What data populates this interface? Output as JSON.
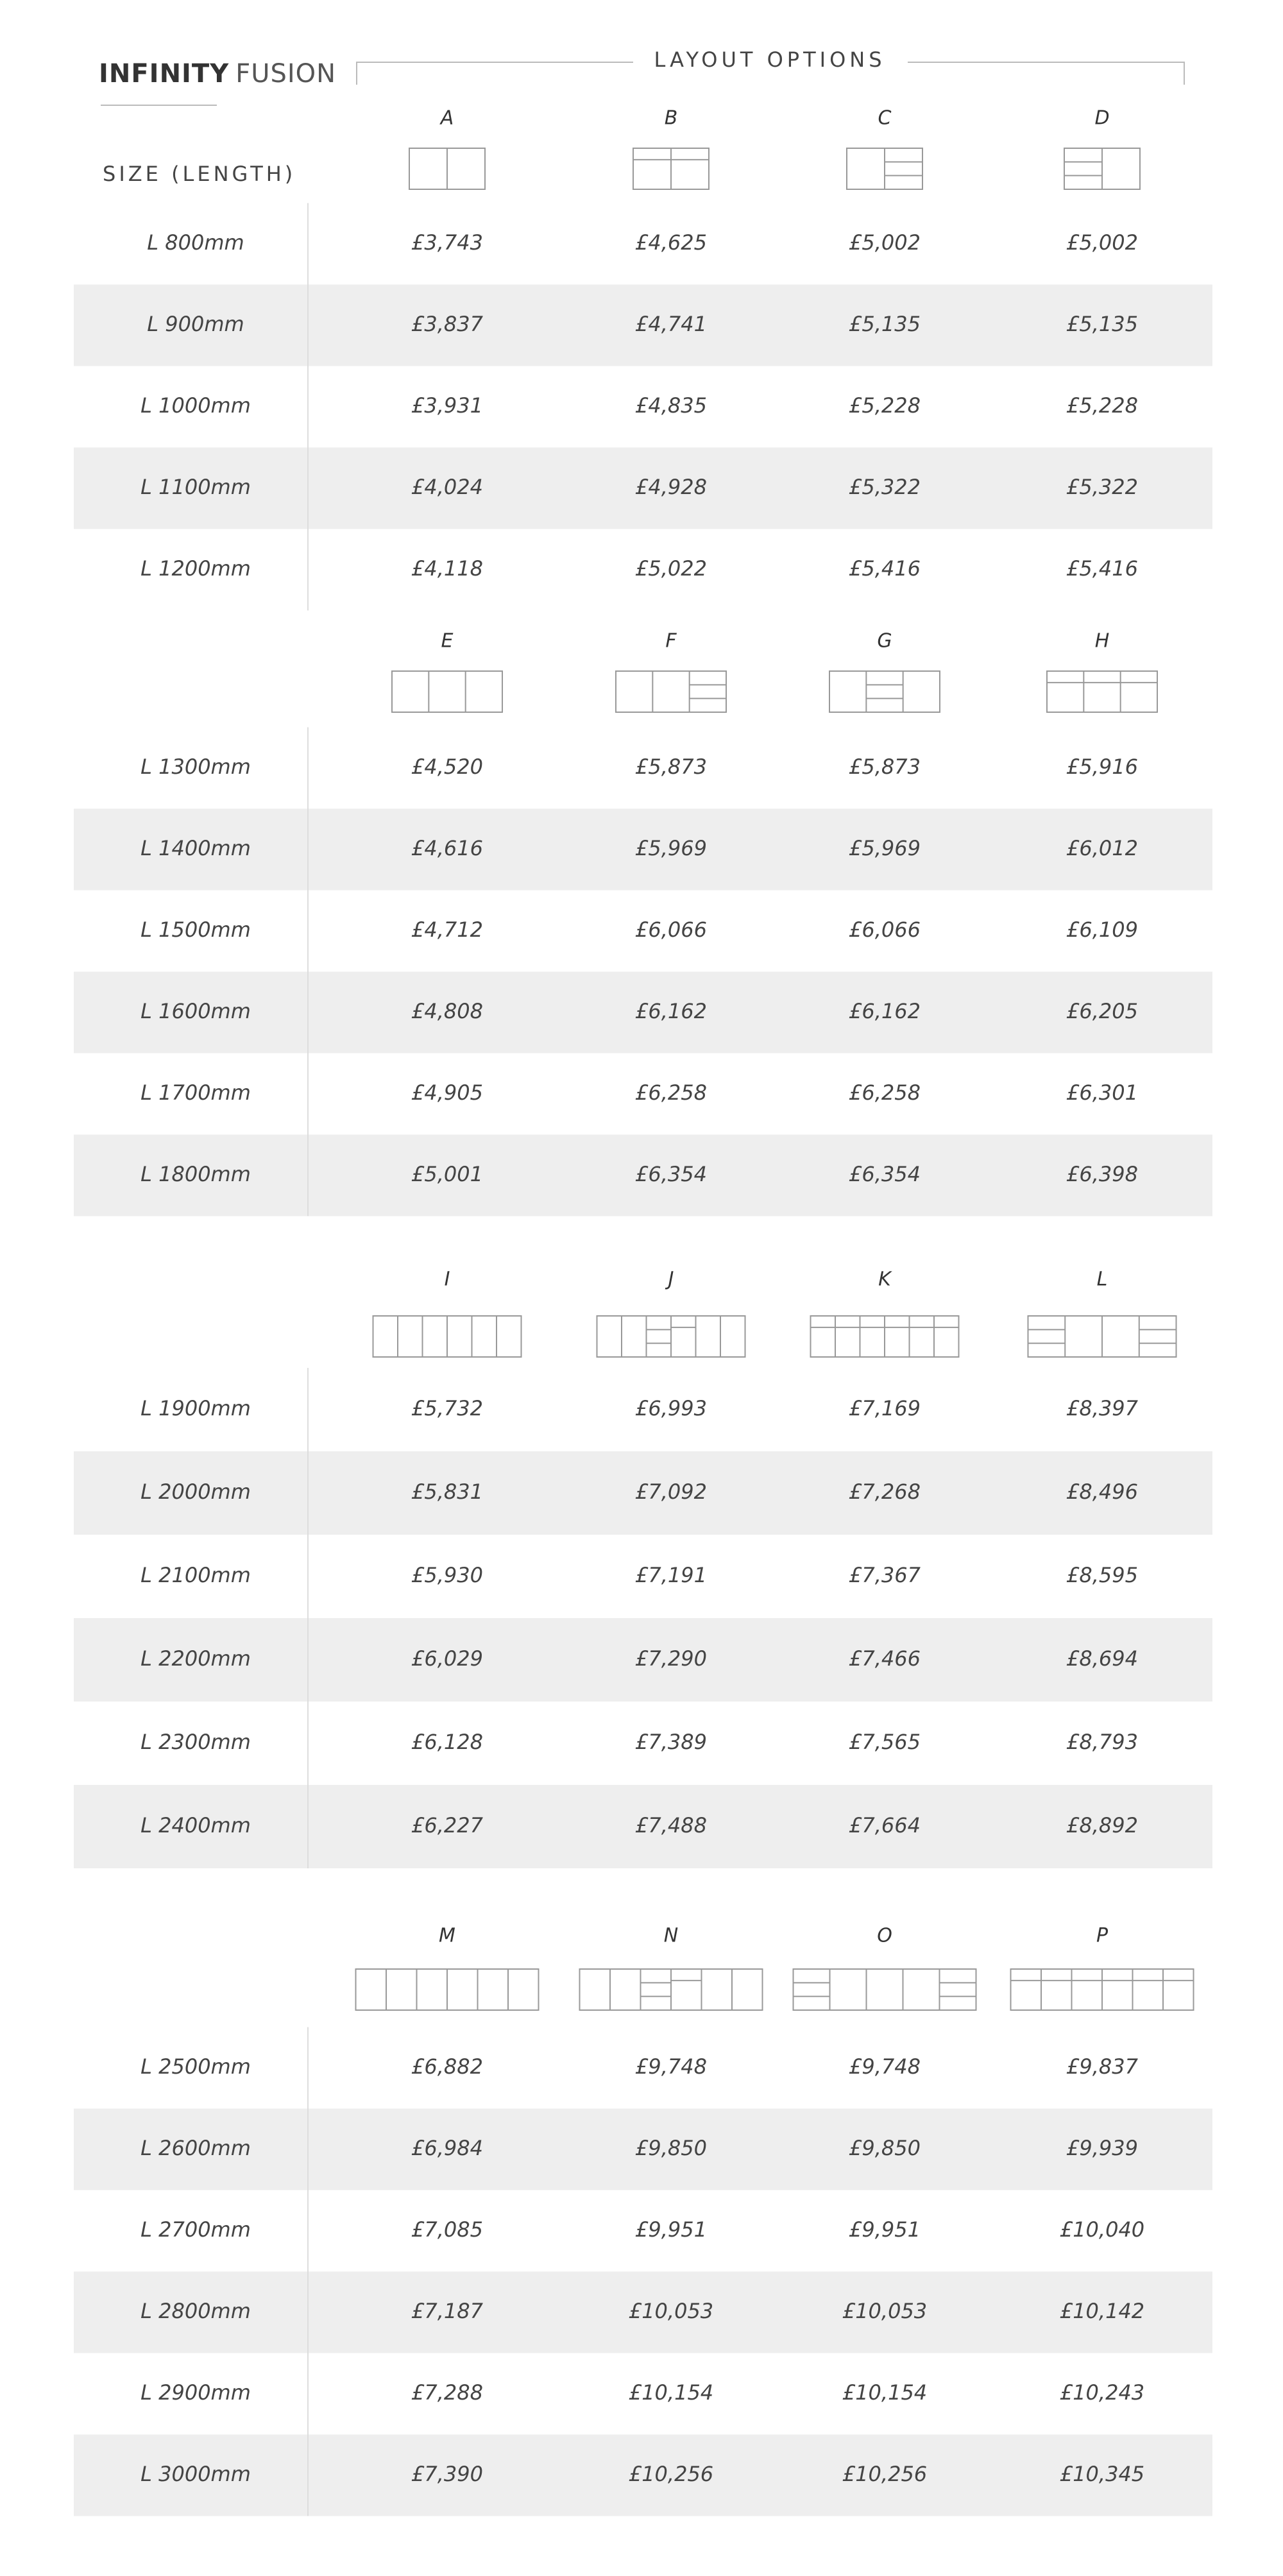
{
  "header": {
    "brand": "INFINITY",
    "model": "FUSION",
    "layout_options": "LAYOUT OPTIONS",
    "size_label": "SIZE (LENGTH)"
  },
  "sections": [
    {
      "layouts": [
        "A",
        "B",
        "C",
        "D"
      ],
      "rows": [
        {
          "size": "L 800mm",
          "prices": [
            "£3,743",
            "£4,625",
            "£5,002",
            "£5,002"
          ]
        },
        {
          "size": "L 900mm",
          "prices": [
            "£3,837",
            "£4,741",
            "£5,135",
            "£5,135"
          ]
        },
        {
          "size": "L 1000mm",
          "prices": [
            "£3,931",
            "£4,835",
            "£5,228",
            "£5,228"
          ]
        },
        {
          "size": "L 1100mm",
          "prices": [
            "£4,024",
            "£4,928",
            "£5,322",
            "£5,322"
          ]
        },
        {
          "size": "L 1200mm",
          "prices": [
            "£4,118",
            "£5,022",
            "£5,416",
            "£5,416"
          ]
        }
      ]
    },
    {
      "layouts": [
        "E",
        "F",
        "G",
        "H"
      ],
      "rows": [
        {
          "size": "L 1300mm",
          "prices": [
            "£4,520",
            "£5,873",
            "£5,873",
            "£5,916"
          ]
        },
        {
          "size": "L 1400mm",
          "prices": [
            "£4,616",
            "£5,969",
            "£5,969",
            "£6,012"
          ]
        },
        {
          "size": "L 1500mm",
          "prices": [
            "£4,712",
            "£6,066",
            "£6,066",
            "£6,109"
          ]
        },
        {
          "size": "L 1600mm",
          "prices": [
            "£4,808",
            "£6,162",
            "£6,162",
            "£6,205"
          ]
        },
        {
          "size": "L 1700mm",
          "prices": [
            "£4,905",
            "£6,258",
            "£6,258",
            "£6,301"
          ]
        },
        {
          "size": "L 1800mm",
          "prices": [
            "£5,001",
            "£6,354",
            "£6,354",
            "£6,398"
          ]
        }
      ]
    },
    {
      "layouts": [
        "I",
        "J",
        "K",
        "L"
      ],
      "rows": [
        {
          "size": "L 1900mm",
          "prices": [
            "£5,732",
            "£6,993",
            "£7,169",
            "£8,397"
          ]
        },
        {
          "size": "L 2000mm",
          "prices": [
            "£5,831",
            "£7,092",
            "£7,268",
            "£8,496"
          ]
        },
        {
          "size": "L 2100mm",
          "prices": [
            "£5,930",
            "£7,191",
            "£7,367",
            "£8,595"
          ]
        },
        {
          "size": "L 2200mm",
          "prices": [
            "£6,029",
            "£7,290",
            "£7,466",
            "£8,694"
          ]
        },
        {
          "size": "L 2300mm",
          "prices": [
            "£6,128",
            "£7,389",
            "£7,565",
            "£8,793"
          ]
        },
        {
          "size": "L 2400mm",
          "prices": [
            "£6,227",
            "£7,488",
            "£7,664",
            "£8,892"
          ]
        }
      ]
    },
    {
      "layouts": [
        "M",
        "N",
        "O",
        "P"
      ],
      "rows": [
        {
          "size": "L 2500mm",
          "prices": [
            "£6,882",
            "£9,748",
            "£9,748",
            "£9,837"
          ]
        },
        {
          "size": "L 2600mm",
          "prices": [
            "£6,984",
            "£9,850",
            "£9,850",
            "£9,939"
          ]
        },
        {
          "size": "L 2700mm",
          "prices": [
            "£7,085",
            "£9,951",
            "£9,951",
            "£10,040"
          ]
        },
        {
          "size": "L 2800mm",
          "prices": [
            "£7,187",
            "£10,053",
            "£10,053",
            "£10,142"
          ]
        },
        {
          "size": "L 2900mm",
          "prices": [
            "£7,288",
            "£10,154",
            "£10,154",
            "£10,243"
          ]
        },
        {
          "size": "L 3000mm",
          "prices": [
            "£7,390",
            "£10,256",
            "£10,256",
            "£10,345"
          ]
        }
      ]
    }
  ]
}
